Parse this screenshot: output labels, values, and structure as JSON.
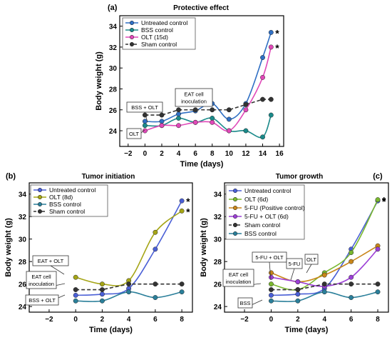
{
  "chart_data": [
    {
      "type": "line",
      "panel_label": "(a)",
      "title": "Protective effect",
      "xlabel": "Time (days)",
      "ylabel": "Body weight (g)",
      "xlim": [
        -3,
        16.5
      ],
      "ylim": [
        22.5,
        35
      ],
      "xticks": [
        -2,
        0,
        2,
        4,
        6,
        8,
        10,
        12,
        14,
        16
      ],
      "yticks": [
        24,
        26,
        28,
        30,
        32,
        34
      ],
      "legend_position": "top-left",
      "series": [
        {
          "name": "Untreated control",
          "color": "#2f6fc4",
          "style": "solid",
          "marker": "circle",
          "x": [
            0,
            2,
            4,
            6,
            8,
            10,
            12,
            14,
            15
          ],
          "y": [
            24.9,
            24.9,
            25.6,
            25.9,
            26.6,
            25.1,
            26.6,
            31.0,
            33.4
          ],
          "significance": "*"
        },
        {
          "name": "BSS control",
          "color": "#1a8a8a",
          "style": "solid",
          "marker": "circle",
          "x": [
            0,
            2,
            4,
            6,
            8,
            10,
            12,
            14,
            15
          ],
          "y": [
            24.5,
            24.5,
            25.2,
            24.8,
            25.2,
            24.0,
            24.0,
            23.4,
            25.5
          ]
        },
        {
          "name": "OLT (15d)",
          "color": "#e048b8",
          "style": "solid",
          "marker": "circle",
          "x": [
            0,
            2,
            4,
            6,
            8,
            10,
            12,
            14,
            15
          ],
          "y": [
            24.0,
            24.5,
            24.5,
            24.8,
            24.8,
            24.0,
            26.0,
            29.1,
            32.0
          ],
          "significance": "*"
        },
        {
          "name": "Sham control",
          "color": "#333333",
          "style": "dashed",
          "marker": "circle",
          "x": [
            0,
            2,
            4,
            6,
            8,
            10,
            12,
            14,
            15
          ],
          "y": [
            25.5,
            25.5,
            26.0,
            26.0,
            26.0,
            26.0,
            26.5,
            27.0,
            27.0
          ]
        }
      ],
      "annotations": [
        "BSS + OLT",
        "OLT",
        "EAT cell\ninoculation"
      ]
    },
    {
      "type": "line",
      "panel_label": "(b)",
      "title": "Tumor initiation",
      "xlabel": "Time (days)",
      "ylabel": "Body weight (g)",
      "xlim": [
        -3.5,
        8.8
      ],
      "ylim": [
        23.5,
        35
      ],
      "xticks": [
        -2,
        0,
        2,
        4,
        6,
        8
      ],
      "yticks": [
        24,
        26,
        28,
        30,
        32,
        34
      ],
      "legend_position": "top-left",
      "series": [
        {
          "name": "Untreated control",
          "color": "#4a5fd6",
          "style": "solid",
          "marker": "circle",
          "x": [
            0,
            2,
            4,
            6,
            8
          ],
          "y": [
            25.0,
            25.1,
            25.6,
            29.1,
            33.4
          ],
          "significance": "*"
        },
        {
          "name": "OLT (8d)",
          "color": "#a5a516",
          "style": "solid",
          "marker": "circle",
          "x": [
            0,
            2,
            4,
            6,
            8
          ],
          "y": [
            26.6,
            26.0,
            26.3,
            30.6,
            32.5
          ],
          "significance": "*"
        },
        {
          "name": "BSS control",
          "color": "#2a7f9a",
          "style": "solid",
          "marker": "circle",
          "x": [
            0,
            2,
            4,
            6,
            8
          ],
          "y": [
            24.5,
            24.5,
            25.3,
            24.8,
            25.3
          ]
        },
        {
          "name": "Sham control",
          "color": "#333333",
          "style": "dashed",
          "marker": "circle",
          "x": [
            0,
            2,
            4,
            6,
            8
          ],
          "y": [
            25.5,
            25.5,
            26.0,
            26.0,
            26.0
          ]
        }
      ],
      "annotations": [
        "EAT + OLT",
        "EAT cell\ninoculation",
        "BSS + OLT"
      ]
    },
    {
      "type": "line",
      "panel_label": "(c)",
      "title": "Tumor growth",
      "xlabel": "Time (days)",
      "ylabel": "Body weight (g)",
      "xlim": [
        -3.5,
        8.8
      ],
      "ylim": [
        23.5,
        35
      ],
      "xticks": [
        -2,
        0,
        2,
        4,
        6,
        8
      ],
      "yticks": [
        24,
        26,
        28,
        30,
        32,
        34
      ],
      "legend_position": "top-left",
      "series": [
        {
          "name": "Untreated control",
          "color": "#4a5fd6",
          "style": "solid",
          "marker": "circle",
          "x": [
            0,
            2,
            4,
            6,
            8
          ],
          "y": [
            25.0,
            25.1,
            25.6,
            29.1,
            33.4
          ],
          "significance": "*"
        },
        {
          "name": "OLT (6d)",
          "color": "#7ab82f",
          "style": "solid",
          "marker": "circle",
          "x": [
            0,
            2,
            4,
            6,
            8
          ],
          "y": [
            26.0,
            25.5,
            27.0,
            28.8,
            33.5
          ],
          "significance": "*"
        },
        {
          "name": "5-FU (Positive control)",
          "color": "#c9861a",
          "style": "solid",
          "marker": "circle",
          "x": [
            0,
            2,
            4,
            6,
            8
          ],
          "y": [
            27.0,
            26.2,
            26.8,
            28.0,
            29.4
          ]
        },
        {
          "name": "5-FU + OLT (6d)",
          "color": "#9c3fd6",
          "style": "solid",
          "marker": "circle",
          "x": [
            0,
            2,
            4,
            6,
            8
          ],
          "y": [
            26.6,
            26.2,
            25.8,
            26.6,
            29.1
          ]
        },
        {
          "name": "Sham control",
          "color": "#333333",
          "style": "dashed",
          "marker": "circle",
          "x": [
            0,
            2,
            4,
            6,
            8
          ],
          "y": [
            25.5,
            25.5,
            26.0,
            26.0,
            26.0
          ]
        },
        {
          "name": "BSS control",
          "color": "#2a7f9a",
          "style": "solid",
          "marker": "circle",
          "x": [
            0,
            2,
            4,
            6,
            8
          ],
          "y": [
            24.5,
            24.5,
            25.3,
            24.8,
            25.3
          ]
        }
      ],
      "annotations": [
        "5-FU + OLT",
        "5-FU",
        "OLT",
        "EAT cell\ninoculation",
        "BSS"
      ]
    }
  ]
}
